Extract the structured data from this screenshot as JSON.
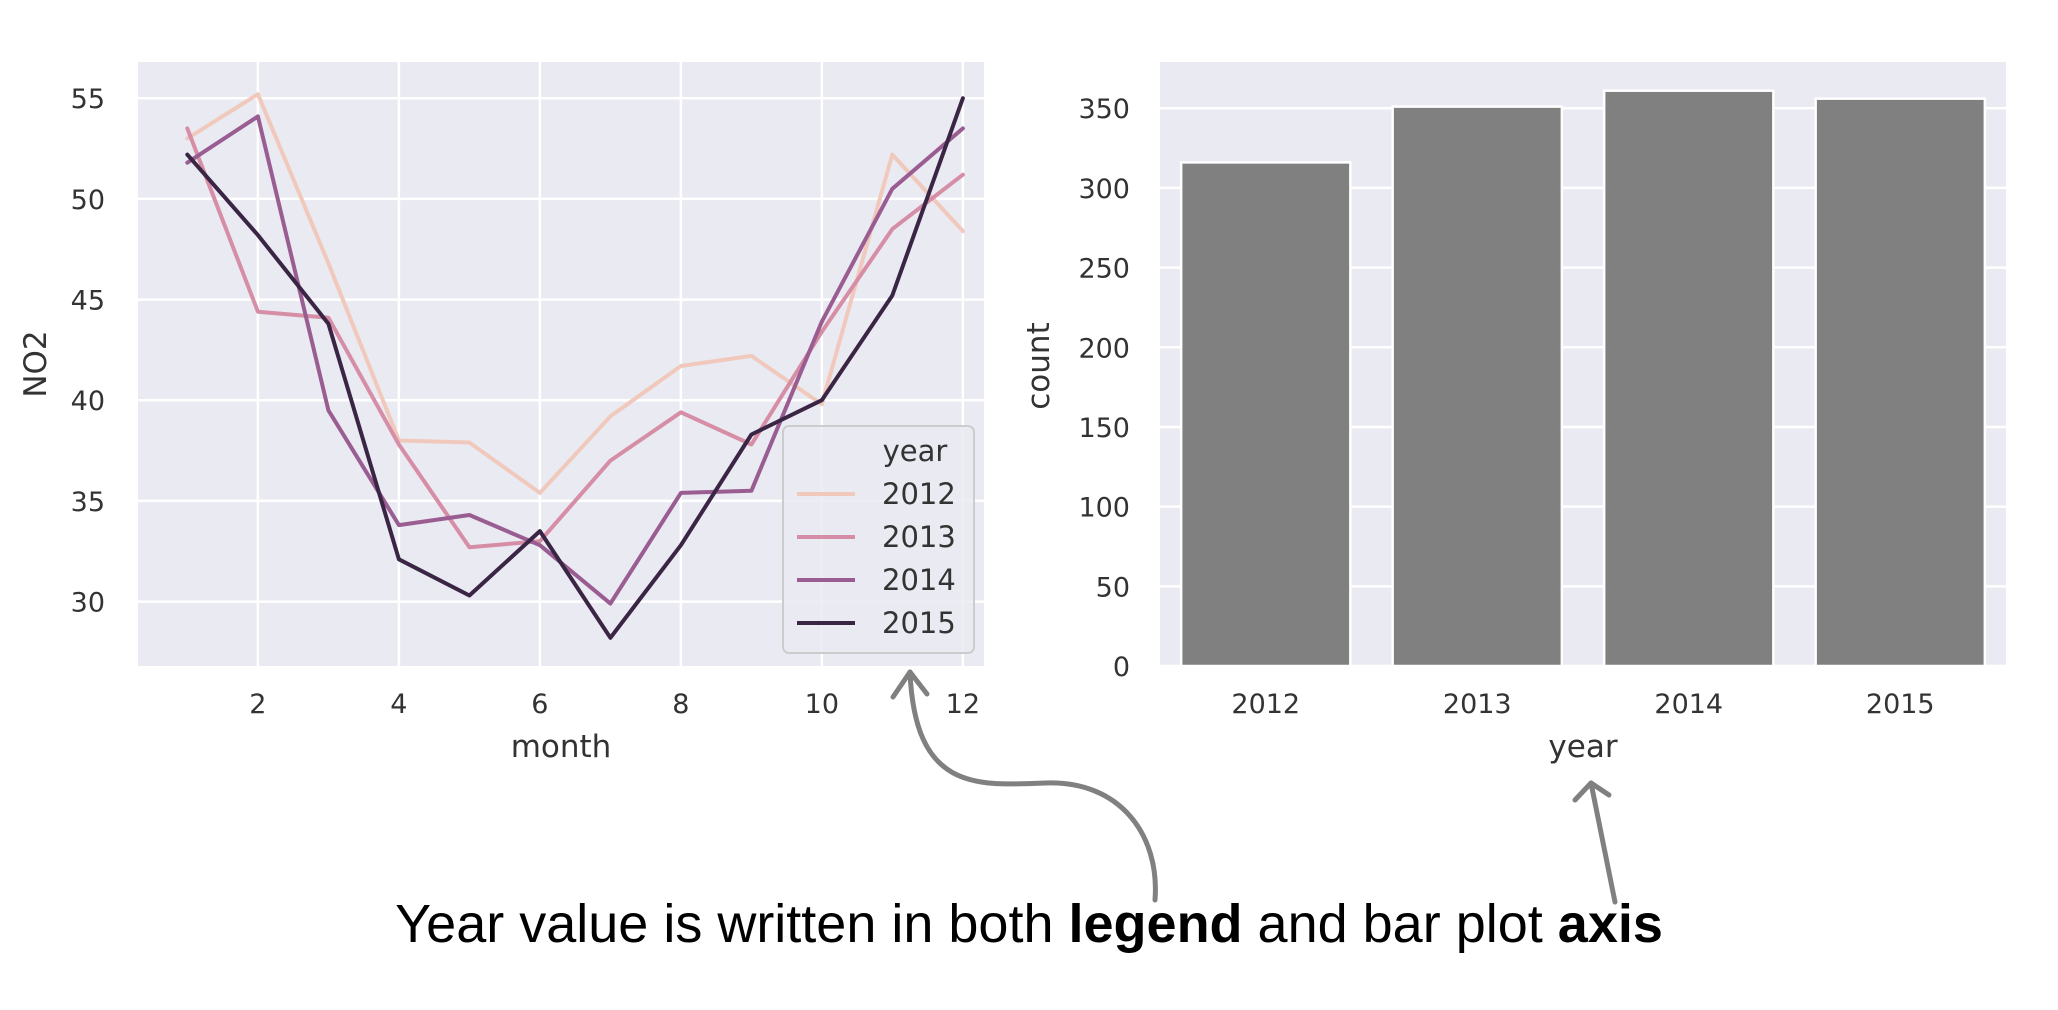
{
  "chart_data": [
    {
      "type": "line",
      "xlabel": "month",
      "ylabel": "NO2",
      "xlim": [
        0.3,
        12.3
      ],
      "ylim": [
        26.8,
        56.8
      ],
      "xticks": [
        2,
        4,
        6,
        8,
        10,
        12
      ],
      "yticks": [
        30,
        35,
        40,
        45,
        50,
        55
      ],
      "grid": true,
      "legend": {
        "title": "year",
        "placement": "bottom-right"
      },
      "x": [
        1,
        2,
        3,
        4,
        5,
        6,
        7,
        8,
        9,
        10,
        11,
        12
      ],
      "series": [
        {
          "name": "2012",
          "color": "#f0c9bc",
          "values": [
            53.0,
            55.2,
            46.8,
            38.0,
            37.9,
            35.4,
            39.2,
            41.7,
            42.2,
            39.8,
            52.2,
            48.4
          ]
        },
        {
          "name": "2013",
          "color": "#d68ea6",
          "values": [
            53.5,
            44.4,
            44.1,
            37.8,
            32.7,
            33.0,
            37.0,
            39.4,
            37.8,
            43.4,
            48.5,
            51.2
          ]
        },
        {
          "name": "2014",
          "color": "#9a5d92",
          "values": [
            51.8,
            54.1,
            39.5,
            33.8,
            34.3,
            32.8,
            29.9,
            35.4,
            35.5,
            43.9,
            50.5,
            53.5
          ]
        },
        {
          "name": "2015",
          "color": "#3a2545",
          "values": [
            52.2,
            48.2,
            43.8,
            32.1,
            30.3,
            33.5,
            28.2,
            32.8,
            38.3,
            40.0,
            45.2,
            55.0
          ]
        }
      ]
    },
    {
      "type": "bar",
      "xlabel": "year",
      "ylabel": "count",
      "categories": [
        "2012",
        "2013",
        "2014",
        "2015"
      ],
      "values": [
        316,
        351,
        361,
        356
      ],
      "ylim": [
        0,
        379
      ],
      "yticks": [
        0,
        50,
        100,
        150,
        200,
        250,
        300,
        350
      ],
      "bar_color": "#808080",
      "grid": true
    }
  ],
  "annotation": {
    "parts": [
      {
        "text": "Year value is written in both ",
        "bold": false
      },
      {
        "text": "legend",
        "bold": true
      },
      {
        "text": " and bar plot ",
        "bold": false
      },
      {
        "text": "axis",
        "bold": true
      }
    ],
    "arrow_color": "#808080"
  }
}
